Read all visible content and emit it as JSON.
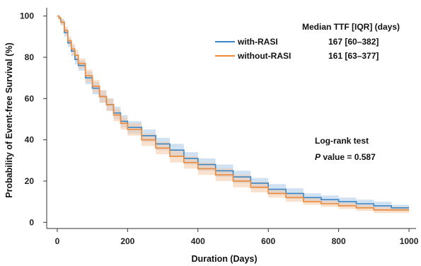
{
  "chart_data": {
    "type": "line",
    "xlabel": "Duration (Days)",
    "ylabel": "Probability of Event-free Survival (%)",
    "xlim": [
      -30,
      1020
    ],
    "ylim": [
      -3,
      104
    ],
    "xticks": [
      "0",
      "200",
      "400",
      "600",
      "800",
      "1000"
    ],
    "yticks": [
      "0",
      "20",
      "40",
      "60",
      "80",
      "100"
    ],
    "legend": {
      "title": "Median TTF [IQR] (days)",
      "placement": "top-right",
      "entries": [
        {
          "label": "with-RASI",
          "stat": "167 [60–382]"
        },
        {
          "label": "without-RASI",
          "stat": "161 [63–377]"
        }
      ]
    },
    "annotations": {
      "logrank": "Log-rank test",
      "pvalue_italic": "P",
      "pvalue_rest": " value = 0.587"
    },
    "series": [
      {
        "name": "with-RASI",
        "color": "#3b86c6",
        "band_color": "#a9c9e8",
        "x": [
          0,
          5,
          10,
          20,
          30,
          40,
          50,
          60,
          80,
          100,
          120,
          140,
          160,
          180,
          200,
          240,
          280,
          320,
          360,
          400,
          450,
          500,
          550,
          600,
          650,
          700,
          750,
          800,
          850,
          900,
          950,
          1000
        ],
        "y": [
          100,
          99,
          97,
          92,
          87,
          83,
          79,
          76,
          70,
          65,
          61,
          57,
          53,
          49,
          46,
          42,
          38,
          35,
          31,
          28,
          25,
          22,
          19,
          16,
          14,
          12,
          11,
          10,
          9,
          8,
          7,
          7
        ],
        "lower": [
          100,
          98,
          95.5,
          90,
          85,
          80.5,
          76.5,
          73.5,
          67,
          62,
          58,
          54,
          50,
          46,
          43,
          39,
          35,
          32,
          28,
          25,
          22,
          19,
          16.5,
          13.5,
          11.5,
          10,
          9,
          8,
          7,
          6,
          5.5,
          5.5
        ],
        "upper": [
          100,
          100,
          98.5,
          94,
          89,
          85.5,
          81.5,
          78.5,
          73,
          68,
          64,
          60,
          56,
          52,
          49,
          45,
          41,
          38,
          34,
          31,
          28,
          25,
          21.5,
          18.5,
          16.5,
          14,
          13,
          12,
          11,
          10,
          8.5,
          8.5
        ]
      },
      {
        "name": "without-RASI",
        "color": "#ea8a3a",
        "band_color": "#f6c9a4",
        "x": [
          0,
          5,
          10,
          20,
          30,
          40,
          50,
          60,
          80,
          100,
          120,
          140,
          160,
          180,
          200,
          240,
          280,
          320,
          360,
          400,
          450,
          500,
          550,
          600,
          650,
          700,
          750,
          800,
          850,
          900,
          950,
          1000
        ],
        "y": [
          100,
          99,
          97,
          93,
          88,
          84,
          81,
          77,
          71,
          66,
          61,
          57,
          52,
          48,
          45,
          40,
          36,
          32,
          29,
          26,
          23,
          20,
          17,
          14,
          12,
          10,
          9,
          8,
          7,
          6,
          6,
          6
        ],
        "lower": [
          100,
          98,
          95.5,
          91,
          86,
          81.5,
          78.5,
          74.5,
          68,
          63,
          58,
          54,
          49,
          45,
          42,
          37,
          33,
          29,
          26,
          23,
          20,
          17,
          14.5,
          12,
          10,
          8.5,
          7.5,
          6.5,
          5.5,
          4.5,
          4.5,
          4.5
        ],
        "upper": [
          100,
          100,
          98.5,
          95,
          90,
          86.5,
          83.5,
          79.5,
          74,
          69,
          64,
          60,
          55,
          51,
          48,
          43,
          39,
          35,
          32,
          29,
          26,
          23,
          19.5,
          16,
          14,
          12,
          10.5,
          9.5,
          8.5,
          7.5,
          7.5,
          7.5
        ]
      }
    ]
  }
}
